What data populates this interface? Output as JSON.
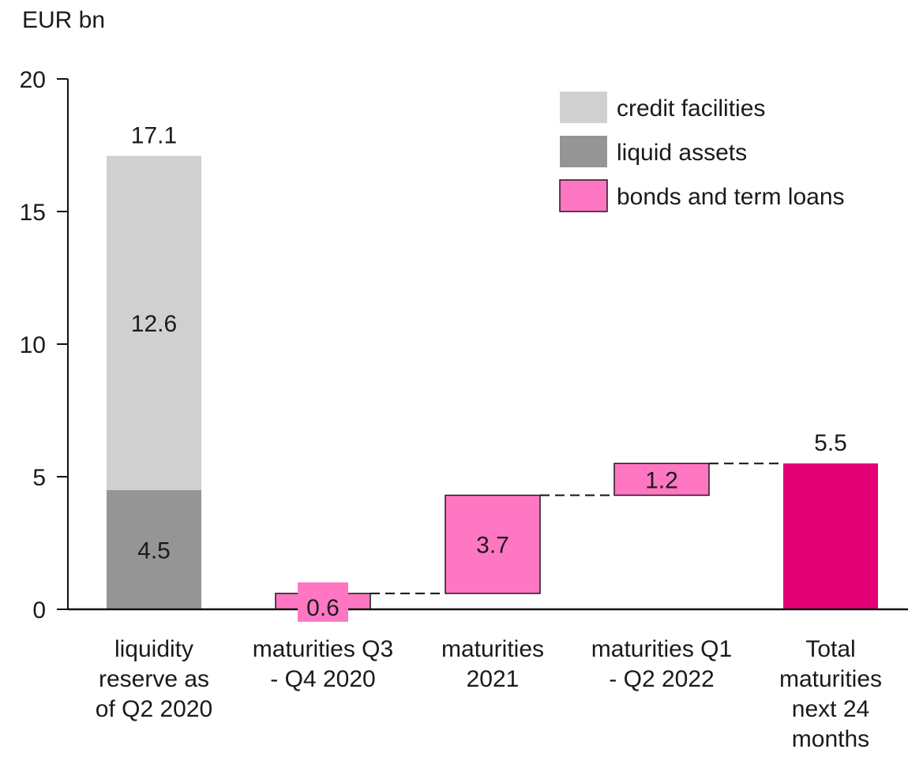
{
  "chart_data": {
    "type": "bar",
    "subtype": "waterfall",
    "unit_label": "EUR bn",
    "ylim": [
      0,
      20
    ],
    "yticks": [
      0,
      5,
      10,
      15,
      20
    ],
    "grid": false,
    "legend_position": "top-right",
    "categories": [
      [
        "liquidity",
        "reserve as",
        "of Q2 2020"
      ],
      [
        "maturities Q3",
        "- Q4 2020"
      ],
      [
        "maturities",
        "2021"
      ],
      [
        "maturities Q1",
        "- Q2 2022"
      ],
      [
        "Total",
        "maturities",
        "next 24",
        "months"
      ]
    ],
    "legend": [
      {
        "label": "credit facilities",
        "color": "#d0d0d0"
      },
      {
        "label": "liquid assets",
        "color": "#959595"
      },
      {
        "label": "bonds and term loans",
        "color": "#ff77c3"
      }
    ],
    "bars": [
      {
        "category_index": 0,
        "segments": [
          {
            "series": "liquid assets",
            "start": 0,
            "end": 4.5,
            "label": "4.5",
            "color": "#959595"
          },
          {
            "series": "credit facilities",
            "start": 4.5,
            "end": 17.1,
            "label": "12.6",
            "color": "#d0d0d0"
          }
        ],
        "total_label": "17.1"
      },
      {
        "category_index": 1,
        "segments": [
          {
            "series": "bonds and term loans",
            "start": 0,
            "end": 0.6,
            "label": "0.6",
            "color": "#ff77c3"
          }
        ]
      },
      {
        "category_index": 2,
        "segments": [
          {
            "series": "bonds and term loans",
            "start": 0.6,
            "end": 4.3,
            "label": "3.7",
            "color": "#ff77c3"
          }
        ]
      },
      {
        "category_index": 3,
        "segments": [
          {
            "series": "bonds and term loans",
            "start": 4.3,
            "end": 5.5,
            "label": "1.2",
            "color": "#ff77c3"
          }
        ]
      },
      {
        "category_index": 4,
        "segments": [
          {
            "series": "total",
            "start": 0,
            "end": 5.5,
            "color": "#e20074"
          }
        ],
        "total_label": "5.5"
      }
    ]
  }
}
